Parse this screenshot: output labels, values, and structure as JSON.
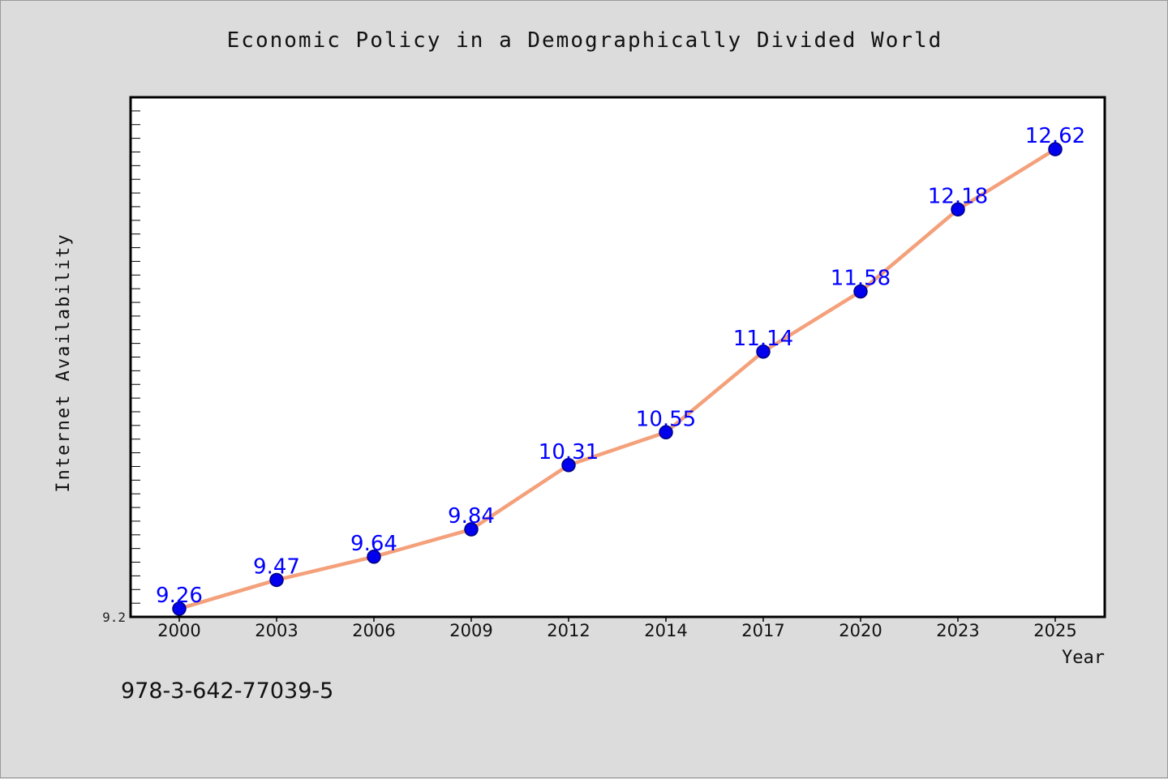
{
  "chart_data": {
    "type": "line",
    "title": "Economic Policy in a Demographically Divided World",
    "xlabel": "Year",
    "ylabel": "Internet Availability",
    "categories": [
      "2000",
      "2003",
      "2006",
      "2009",
      "2012",
      "2014",
      "2017",
      "2020",
      "2023",
      "2025"
    ],
    "values": [
      9.26,
      9.47,
      9.64,
      9.84,
      10.31,
      10.55,
      11.14,
      11.58,
      12.18,
      12.62
    ],
    "value_labels": [
      "9.26",
      "9.47",
      "9.64",
      "9.84",
      "10.31",
      "10.55",
      "11.14",
      "11.58",
      "12.18",
      "12.62"
    ],
    "y_tick_labels": [
      "9.2"
    ],
    "ylim": [
      9.2,
      13.0
    ],
    "grid": false,
    "legend": "none",
    "colors": {
      "line": "#f4a07a",
      "marker": "#0000ee",
      "marker_edge": "#000080",
      "label": "#0000ff",
      "plot_background": "#ffffff",
      "figure_background": "#dcdcdc"
    }
  },
  "footer": {
    "isbn": "978-3-642-77039-5"
  }
}
